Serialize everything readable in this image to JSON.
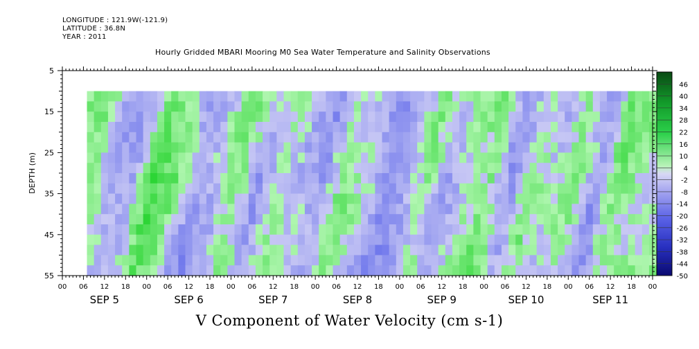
{
  "header": {
    "longitude": "LONGITUDE : 121.9W(-121.9)",
    "latitude": "LATITUDE : 36.8N",
    "year": "YEAR : 2011"
  },
  "chart_data": {
    "type": "heatmap",
    "title": "Hourly Gridded MBARI Mooring M0 Sea Water Temperature and Salinity Observations",
    "xlabel": "V Component of Water Velocity (cm s-1)",
    "ylabel": "DEPTH (m)",
    "y_ticks": [
      5,
      15,
      25,
      35,
      45,
      55
    ],
    "ylim": [
      55,
      5
    ],
    "hour_ticks": [
      "00",
      "06",
      "12",
      "18",
      "00",
      "06",
      "12",
      "18",
      "00",
      "06",
      "12",
      "18",
      "00",
      "06",
      "12",
      "18",
      "00",
      "06",
      "12",
      "18",
      "00",
      "06",
      "12",
      "18",
      "00",
      "06",
      "12",
      "18",
      "00"
    ],
    "days": [
      "SEP  5",
      "SEP  6",
      "SEP  7",
      "SEP  8",
      "SEP  9",
      "SEP 10",
      "SEP 11"
    ],
    "data_depth_range": [
      10,
      55
    ],
    "data_start_hour": 7,
    "colorbar": {
      "labels": [
        "46",
        "40",
        "34",
        "28",
        "22",
        "16",
        "10",
        "4",
        "-2",
        "-8",
        "-14",
        "-20",
        "-26",
        "-32",
        "-38",
        "-44",
        "-50"
      ],
      "range": [
        -50,
        52
      ]
    },
    "velocity_cm_s": [
      {
        "time": "SEP 5 06",
        "value": 4
      },
      {
        "time": "SEP 5 12",
        "value": 10
      },
      {
        "time": "SEP 5 18",
        "value": -8
      },
      {
        "time": "SEP 6 00",
        "value": -10
      },
      {
        "time": "SEP 6 06",
        "value": 16
      },
      {
        "time": "SEP 6 12",
        "value": 8
      },
      {
        "time": "SEP 6 18",
        "value": -14
      },
      {
        "time": "SEP 7 00",
        "value": -6
      },
      {
        "time": "SEP 7 06",
        "value": 10
      },
      {
        "time": "SEP 7 12",
        "value": -10
      },
      {
        "time": "SEP 7 18",
        "value": 4
      },
      {
        "time": "SEP 8 00",
        "value": -4
      },
      {
        "time": "SEP 8 06",
        "value": -12
      },
      {
        "time": "SEP 8 12",
        "value": 6
      },
      {
        "time": "SEP 8 18",
        "value": -2
      },
      {
        "time": "SEP 9 00",
        "value": -16
      },
      {
        "time": "SEP 9 06",
        "value": -10
      },
      {
        "time": "SEP 9 12",
        "value": 6
      },
      {
        "time": "SEP 9 18",
        "value": -8
      },
      {
        "time": "SEP 10 00",
        "value": 4
      },
      {
        "time": "SEP 10 06",
        "value": 10
      },
      {
        "time": "SEP 10 12",
        "value": -14
      },
      {
        "time": "SEP 10 18",
        "value": 6
      },
      {
        "time": "SEP 11 00",
        "value": -6
      },
      {
        "time": "SEP 11 06",
        "value": 8
      },
      {
        "time": "SEP 11 12",
        "value": -16
      },
      {
        "time": "SEP 11 18",
        "value": 10
      },
      {
        "time": "SEP 12 00",
        "value": 4
      }
    ],
    "grid": false
  }
}
